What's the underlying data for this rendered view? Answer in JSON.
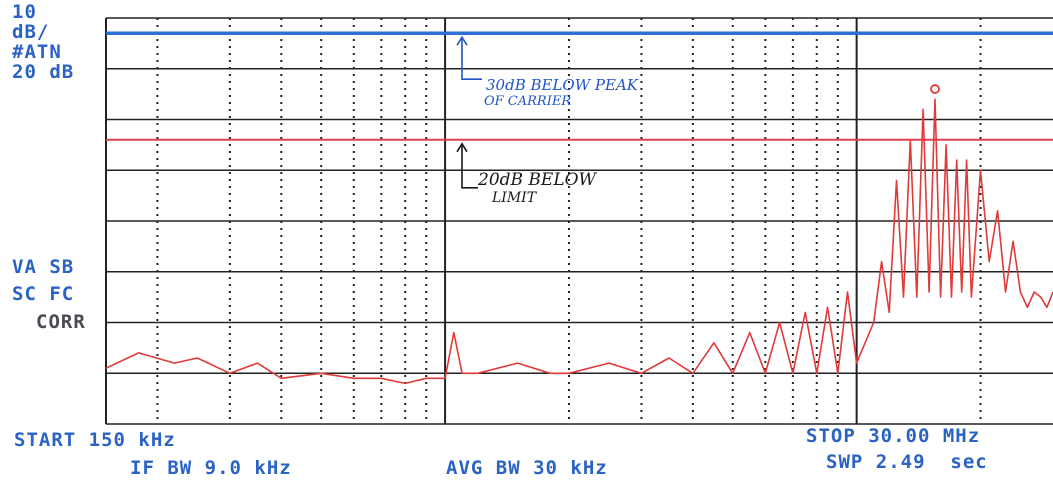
{
  "screen": {
    "left_labels": [
      "10",
      "dB/",
      "#ATN",
      "20 dB"
    ],
    "mid_labels": [
      "VA SB",
      "SC FC",
      "CORR"
    ],
    "start_label": "START 150 kHz",
    "stop_label": "STOP 30.00 MHz",
    "if_bw_label": "IF BW 9.0 kHz",
    "avg_bw_label": "AVG BW 30 kHz",
    "swp_label": "SWP 2.49  sec"
  },
  "annotations": {
    "blue_note_line1": "30dB BELOW PEAK",
    "blue_note_line2": "OF CARRIER",
    "black_note_line1": "20dB BELOW",
    "black_note_line2": "LIMIT"
  },
  "colors": {
    "grid": "#222222",
    "trace": "#e03a3a",
    "limit_line": "#e04050",
    "reference_line": "#2e6fd6",
    "screen_text": "#2a63c4"
  },
  "chart_data": {
    "type": "line",
    "x_scale": "log",
    "xlim": [
      0.15,
      30.0
    ],
    "x_unit": "MHz",
    "y_scale_db_per_div": 10,
    "ylim_divisions": [
      0,
      8
    ],
    "series": [
      {
        "x": [
          0.15,
          0.18,
          0.22,
          0.25,
          0.3,
          0.35,
          0.4,
          0.5,
          0.6,
          0.7,
          0.8,
          0.9,
          1.0,
          1.05,
          1.1,
          1.2,
          1.5,
          1.8,
          2.0,
          2.5,
          3.0,
          3.5,
          4.0,
          4.5,
          5.0,
          5.5,
          6.0,
          6.5,
          7.0,
          7.5,
          8.0,
          8.5,
          9.0,
          9.5,
          10.0,
          11.0,
          11.5,
          12.0,
          12.5,
          13.0,
          13.5,
          14.0,
          14.5,
          15.0,
          15.5,
          16.0,
          16.5,
          17.0,
          17.5,
          18.0,
          18.5,
          19.0,
          20.0,
          21.0,
          22.0,
          23.0,
          24.0,
          25.0,
          26.0,
          27.0,
          28.0,
          29.0,
          30.0
        ],
        "y": [
          1.1,
          1.4,
          1.2,
          1.3,
          1.0,
          1.2,
          0.9,
          1.0,
          0.9,
          0.9,
          0.8,
          0.9,
          0.9,
          1.8,
          1.0,
          1.0,
          1.2,
          1.0,
          1.0,
          1.2,
          1.0,
          1.3,
          1.0,
          1.6,
          1.0,
          1.8,
          1.0,
          2.0,
          1.0,
          2.2,
          1.0,
          2.3,
          1.0,
          2.6,
          1.2,
          2.0,
          3.2,
          2.2,
          4.8,
          2.5,
          5.6,
          2.5,
          6.2,
          2.6,
          6.4,
          2.5,
          5.5,
          2.5,
          5.2,
          2.6,
          5.2,
          2.5,
          5.0,
          3.2,
          4.2,
          2.6,
          3.6,
          2.6,
          2.3,
          2.6,
          2.5,
          2.3,
          2.6
        ]
      }
    ],
    "horizontal_lines": [
      {
        "name": "reference",
        "y": 7.7,
        "color": "#2e6fd6"
      },
      {
        "name": "limit",
        "y": 5.6,
        "color": "#e04050"
      }
    ],
    "peak_marker": {
      "x": 15.5,
      "y": 6.6
    },
    "grid": true
  }
}
